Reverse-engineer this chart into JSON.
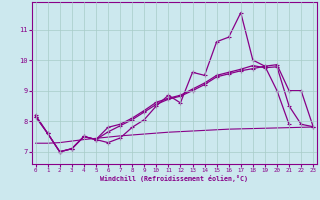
{
  "xlabel": "Windchill (Refroidissement éolien,°C)",
  "background_color": "#cce8ee",
  "grid_color": "#a8ccc8",
  "line_color": "#880088",
  "x_ticks": [
    0,
    1,
    2,
    3,
    4,
    5,
    6,
    7,
    8,
    9,
    10,
    11,
    12,
    13,
    14,
    15,
    16,
    17,
    18,
    19,
    20,
    21,
    22,
    23
  ],
  "y_ticks": [
    7,
    8,
    9,
    10,
    11
  ],
  "ylim": [
    6.6,
    11.9
  ],
  "xlim": [
    -0.3,
    23.3
  ],
  "s1_x": [
    0,
    1,
    2,
    3,
    4,
    5,
    6,
    7,
    8,
    9,
    10,
    11,
    12,
    13,
    14,
    15,
    16,
    17,
    18,
    19,
    20,
    21
  ],
  "s1_y": [
    8.2,
    7.6,
    7.0,
    7.1,
    7.5,
    7.4,
    7.3,
    7.45,
    7.8,
    8.05,
    8.5,
    8.85,
    8.6,
    9.6,
    9.5,
    10.6,
    10.75,
    11.55,
    10.0,
    9.8,
    9.0,
    7.9
  ],
  "s2_x": [
    0,
    1,
    2,
    3,
    4,
    5,
    6,
    7,
    8,
    9,
    10,
    11,
    12,
    13,
    14,
    15,
    16,
    17,
    18,
    19,
    20,
    21,
    22,
    23
  ],
  "s2_y": [
    8.15,
    7.6,
    7.0,
    7.1,
    7.5,
    7.4,
    7.65,
    7.85,
    8.05,
    8.3,
    8.55,
    8.72,
    8.82,
    9.0,
    9.2,
    9.45,
    9.55,
    9.65,
    9.72,
    9.8,
    9.85,
    9.0,
    9.0,
    7.82
  ],
  "s3_x": [
    0,
    1,
    2,
    3,
    4,
    5,
    6,
    7,
    8,
    9,
    10,
    11,
    12,
    13,
    14,
    15,
    16,
    17,
    18,
    19,
    20,
    21,
    22,
    23
  ],
  "s3_y": [
    7.28,
    7.28,
    7.3,
    7.35,
    7.4,
    7.44,
    7.48,
    7.52,
    7.55,
    7.58,
    7.61,
    7.64,
    7.66,
    7.68,
    7.7,
    7.72,
    7.74,
    7.75,
    7.76,
    7.77,
    7.78,
    7.79,
    7.8,
    7.81
  ],
  "s4_x": [
    0,
    1,
    2,
    3,
    4,
    5,
    6,
    7,
    8,
    9,
    10,
    11,
    12,
    13,
    14,
    15,
    16,
    17,
    18,
    19,
    20,
    21,
    22,
    23
  ],
  "s4_y": [
    8.15,
    7.6,
    7.0,
    7.1,
    7.5,
    7.4,
    7.8,
    7.9,
    8.1,
    8.35,
    8.62,
    8.75,
    8.85,
    9.05,
    9.25,
    9.5,
    9.6,
    9.7,
    9.82,
    9.75,
    9.78,
    8.5,
    7.9,
    7.82
  ]
}
